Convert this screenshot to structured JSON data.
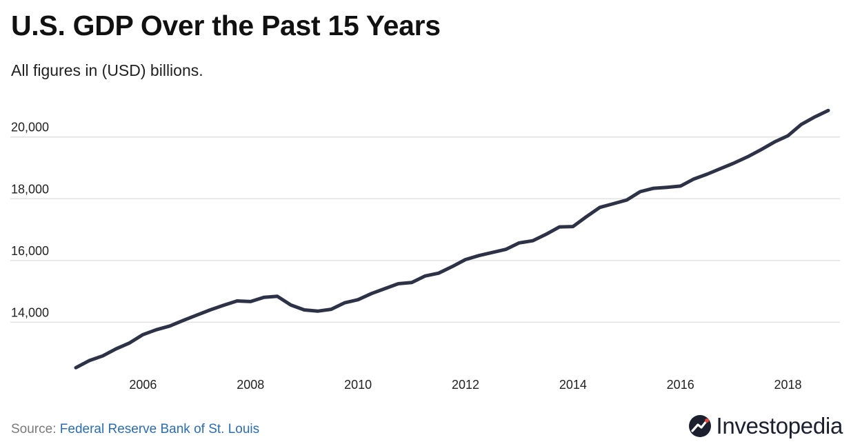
{
  "header": {
    "title": "U.S. GDP Over the Past 15 Years",
    "subtitle": "All figures in (USD) billions."
  },
  "footer": {
    "source_label": "Source: ",
    "source_link": "Federal Reserve Bank of St. Louis",
    "brand": "Investopedia"
  },
  "colors": {
    "line": "#2d3247",
    "grid": "#e2e2e2",
    "link": "#2c6cb0"
  },
  "chart_data": {
    "type": "line",
    "title": "U.S. GDP Over the Past 15 Years",
    "subtitle": "All figures in (USD) billions.",
    "xlabel": "",
    "ylabel": "",
    "grid": true,
    "xlim": [
      2004.75,
      2018.75
    ],
    "ylim": [
      12000,
      21200
    ],
    "x_ticks": [
      {
        "value": 2006,
        "label": "2006"
      },
      {
        "value": 2008,
        "label": "2008"
      },
      {
        "value": 2010,
        "label": "2010"
      },
      {
        "value": 2012,
        "label": "2012"
      },
      {
        "value": 2014,
        "label": "2014"
      },
      {
        "value": 2016,
        "label": "2016"
      },
      {
        "value": 2018,
        "label": "2018"
      }
    ],
    "y_ticks": [
      {
        "value": 14000,
        "label": "14,000"
      },
      {
        "value": 16000,
        "label": "16,000"
      },
      {
        "value": 18000,
        "label": "18,000"
      },
      {
        "value": 20000,
        "label": "20,000"
      }
    ],
    "series": [
      {
        "x": [
          2004.75,
          2005.0,
          2005.25,
          2005.5,
          2005.75,
          2006.0,
          2006.25,
          2006.5,
          2006.75,
          2007.0,
          2007.25,
          2007.5,
          2007.75,
          2008.0,
          2008.25,
          2008.5,
          2008.75,
          2009.0,
          2009.25,
          2009.5,
          2009.75,
          2010.0,
          2010.25,
          2010.5,
          2010.75,
          2011.0,
          2011.25,
          2011.5,
          2011.75,
          2012.0,
          2012.25,
          2012.5,
          2012.75,
          2013.0,
          2013.25,
          2013.5,
          2013.75,
          2014.0,
          2014.25,
          2014.5,
          2014.75,
          2015.0,
          2015.25,
          2015.5,
          2015.75,
          2016.0,
          2016.25,
          2016.5,
          2016.75,
          2017.0,
          2017.25,
          2017.5,
          2017.75,
          2018.0,
          2018.25,
          2018.5,
          2018.75
        ],
        "values": [
          12530,
          12760,
          12910,
          13140,
          13330,
          13600,
          13760,
          13880,
          14060,
          14230,
          14400,
          14550,
          14690,
          14670,
          14810,
          14840,
          14560,
          14400,
          14360,
          14420,
          14630,
          14730,
          14930,
          15090,
          15250,
          15290,
          15500,
          15590,
          15800,
          16030,
          16160,
          16260,
          16360,
          16570,
          16640,
          16850,
          17090,
          17100,
          17420,
          17720,
          17840,
          17960,
          18230,
          18340,
          18370,
          18410,
          18640,
          18800,
          18980,
          19160,
          19360,
          19590,
          19840,
          20040,
          20410,
          20650,
          20860
        ]
      }
    ]
  }
}
